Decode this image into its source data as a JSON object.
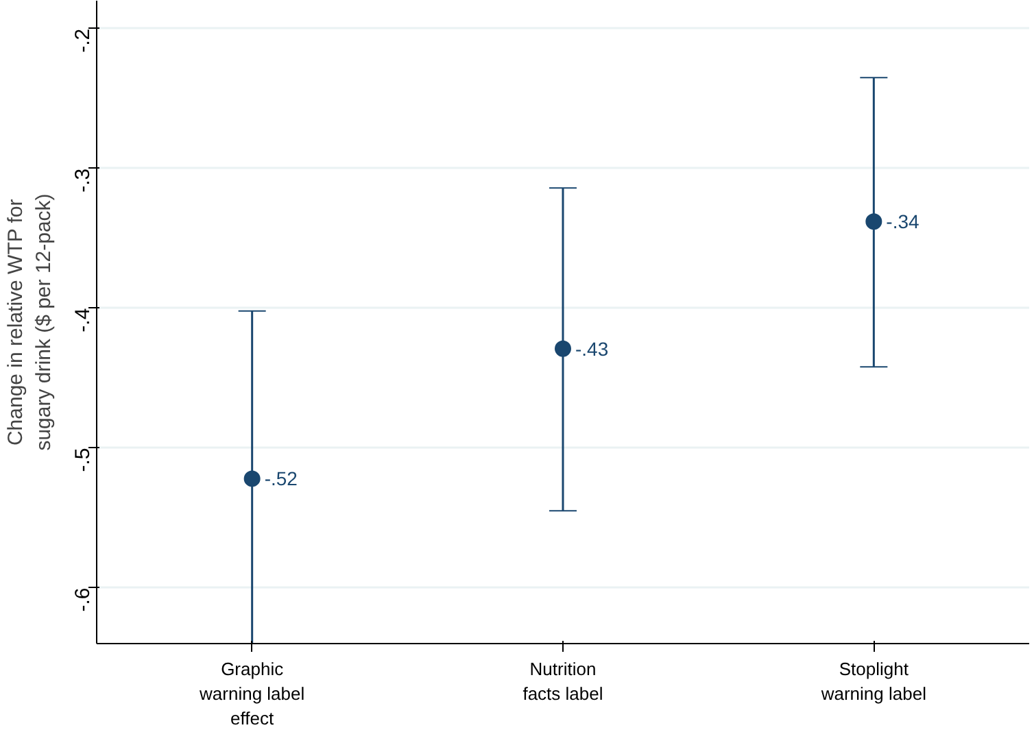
{
  "chart_data": {
    "type": "scatter",
    "ylabel": "Change in relative WTP for\nsugary drink ($ per 12-pack)",
    "categories": [
      "Graphic\nwarning label\neffect",
      "Nutrition\nfacts label",
      "Stoplight\nwarning label"
    ],
    "values": [
      -0.522,
      -0.429,
      -0.338
    ],
    "errors": [
      [
        -0.64,
        -0.402
      ],
      [
        -0.545,
        -0.314
      ],
      [
        -0.442,
        -0.235
      ]
    ],
    "value_labels": [
      "-.52",
      "-.43",
      "-.34"
    ],
    "color": "#1a476f",
    "marker": "circle",
    "grid": "y",
    "ylim": [
      -0.64,
      -0.18
    ],
    "yticks": [
      {
        "value": -0.6,
        "label": "-.6"
      },
      {
        "value": -0.5,
        "label": "-.5"
      },
      {
        "value": -0.4,
        "label": "-.4"
      },
      {
        "value": -0.3,
        "label": "-.3"
      },
      {
        "value": -0.2,
        "label": "-.2"
      }
    ]
  }
}
